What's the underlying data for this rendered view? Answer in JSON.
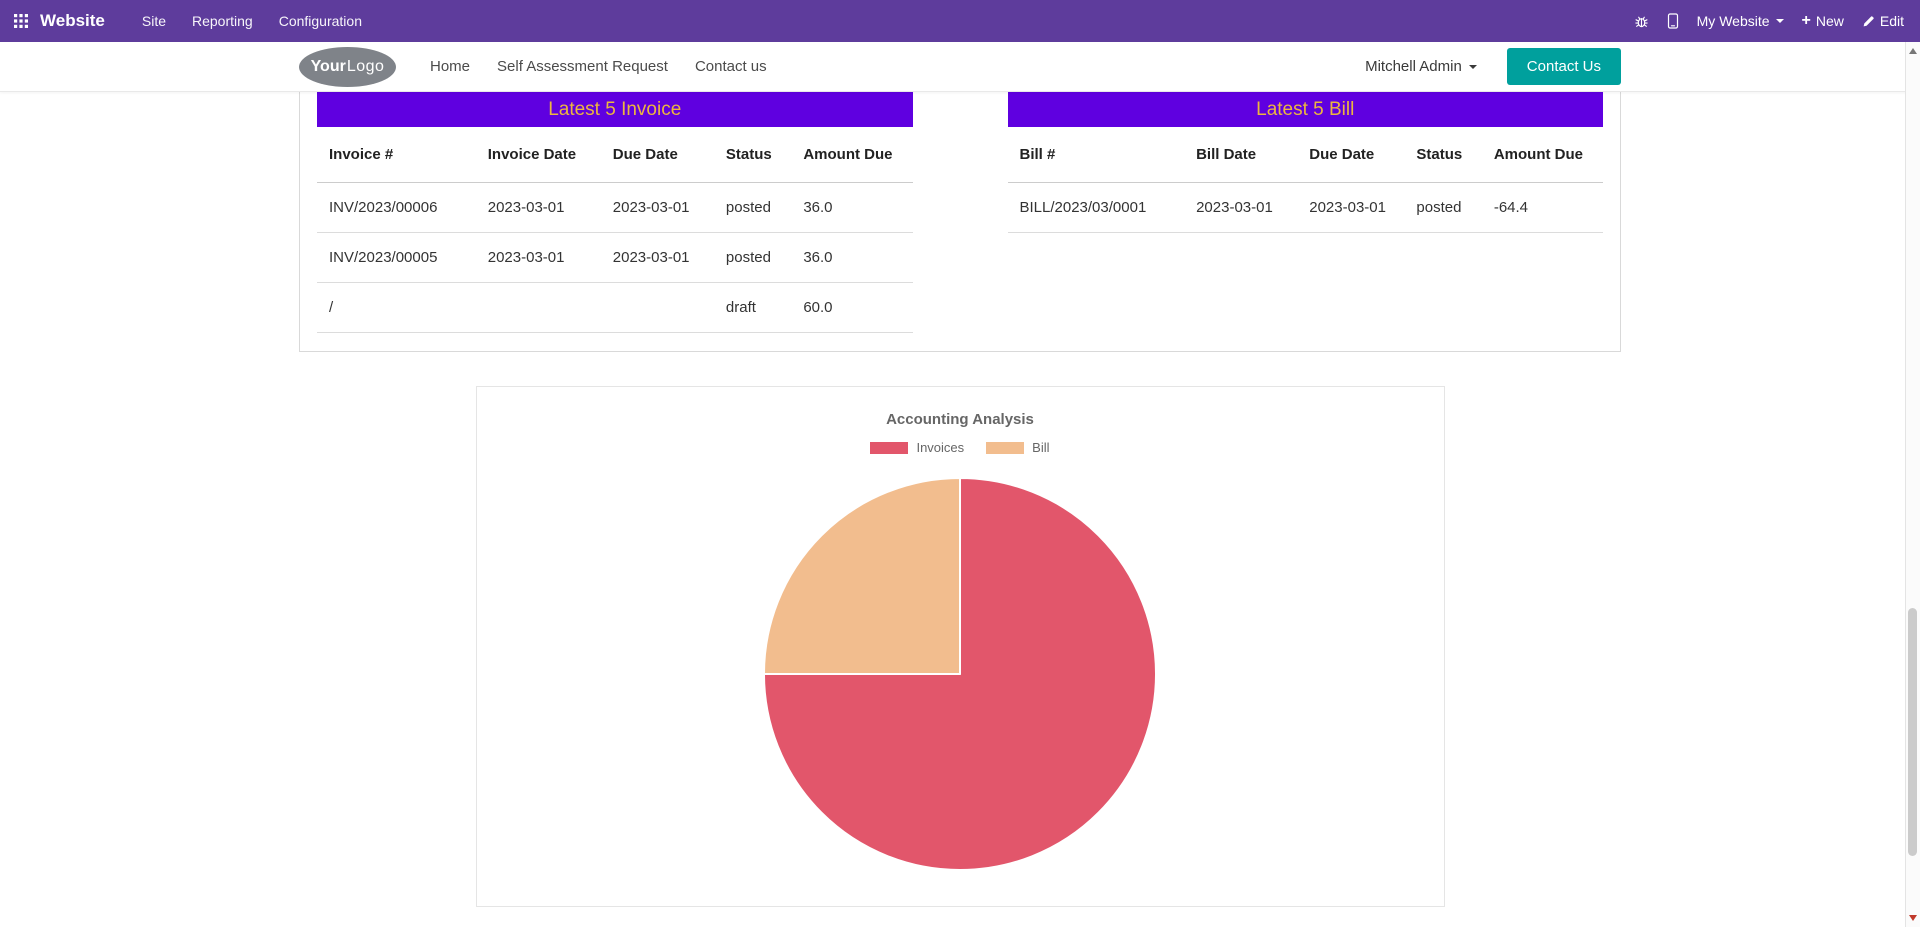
{
  "topbar": {
    "brand": "Website",
    "menus": [
      "Site",
      "Reporting",
      "Configuration"
    ],
    "my_website_label": "My Website",
    "new_label": "New",
    "edit_label": "Edit"
  },
  "navbar": {
    "logo_text_bold": "Your",
    "logo_text_light": "Logo",
    "links": [
      "Home",
      "Self Assessment Request",
      "Contact us"
    ],
    "user_name": "Mitchell Admin",
    "contact_button": "Contact Us"
  },
  "invoice_table": {
    "title": "Latest 5 Invoice",
    "headers": [
      "Invoice #",
      "Invoice Date",
      "Due Date",
      "Status",
      "Amount Due"
    ],
    "rows": [
      [
        "INV/2023/00006",
        "2023-03-01",
        "2023-03-01",
        "posted",
        "36.0"
      ],
      [
        "INV/2023/00005",
        "2023-03-01",
        "2023-03-01",
        "posted",
        "36.0"
      ],
      [
        "/",
        "",
        "",
        "draft",
        "60.0"
      ]
    ]
  },
  "bill_table": {
    "title": "Latest 5 Bill",
    "headers": [
      "Bill #",
      "Bill Date",
      "Due Date",
      "Status",
      "Amount Due"
    ],
    "rows": [
      [
        "BILL/2023/03/0001",
        "2023-03-01",
        "2023-03-01",
        "posted",
        "-64.4"
      ]
    ]
  },
  "chart_data": {
    "type": "pie",
    "title": "Accounting Analysis",
    "labels": [
      "Invoices",
      "Bill"
    ],
    "values": [
      3,
      1
    ],
    "percentages": [
      75,
      25
    ],
    "colors": [
      "#e2566b",
      "#f2bd8e"
    ],
    "slice_border_color": "#ffffff",
    "legend_position": "top"
  },
  "colors": {
    "topbar_bg": "#5e3c9c",
    "table_header_bg": "#5f00e0",
    "table_header_text": "#edb63e",
    "primary_button": "#00a09d"
  }
}
